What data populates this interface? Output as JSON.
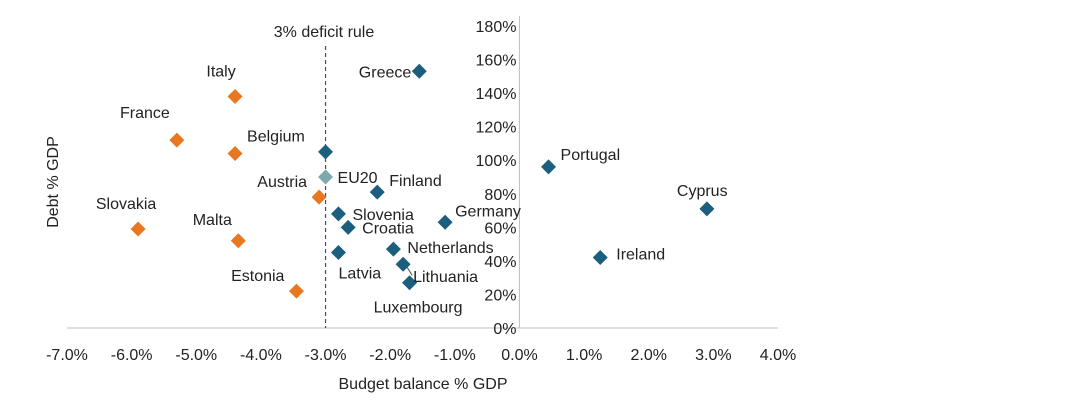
{
  "chart_data": {
    "type": "scatter",
    "xlabel": "Budget balance % GDP",
    "ylabel": "Debt % GDP",
    "xlim": [
      -0.07,
      0.04
    ],
    "ylim": [
      0,
      1.8
    ],
    "x_ticks": [
      "-7.0%",
      "-6.0%",
      "-5.0%",
      "-4.0%",
      "-3.0%",
      "-2.0%",
      "-1.0%",
      "0.0%",
      "1.0%",
      "2.0%",
      "3.0%",
      "4.0%"
    ],
    "y_ticks": [
      "0%",
      "20%",
      "40%",
      "60%",
      "80%",
      "100%",
      "120%",
      "140%",
      "160%",
      "180%"
    ],
    "reference_line": {
      "x": -0.03,
      "label": "3% deficit rule",
      "style": "dashed"
    },
    "grid": false,
    "colors": {
      "breach": "#E87722",
      "compliant": "#1B5E7E",
      "aggregate": "#7FA8AE"
    },
    "points": [
      {
        "name": "Italy",
        "x": -0.044,
        "y": 1.38,
        "group": "breach"
      },
      {
        "name": "France",
        "x": -0.053,
        "y": 1.12,
        "group": "breach"
      },
      {
        "name": "Belgium",
        "x": -0.044,
        "y": 1.04,
        "group": "breach"
      },
      {
        "name": "Austria",
        "x": -0.031,
        "y": 0.78,
        "group": "breach"
      },
      {
        "name": "Slovakia",
        "x": -0.059,
        "y": 0.59,
        "group": "breach"
      },
      {
        "name": "Malta",
        "x": -0.0435,
        "y": 0.52,
        "group": "breach"
      },
      {
        "name": "Estonia",
        "x": -0.0345,
        "y": 0.22,
        "group": "breach"
      },
      {
        "name": "Greece",
        "x": -0.0155,
        "y": 1.53,
        "group": "compliant"
      },
      {
        "name": "",
        "x": -0.03,
        "y": 1.05,
        "group": "compliant"
      },
      {
        "name": "EU20",
        "x": -0.03,
        "y": 0.9,
        "group": "aggregate"
      },
      {
        "name": "Finland",
        "x": -0.022,
        "y": 0.81,
        "group": "compliant"
      },
      {
        "name": "Slovenia",
        "x": -0.028,
        "y": 0.68,
        "group": "compliant"
      },
      {
        "name": "Croatia",
        "x": -0.0265,
        "y": 0.6,
        "group": "compliant"
      },
      {
        "name": "Germany",
        "x": -0.0115,
        "y": 0.63,
        "group": "compliant"
      },
      {
        "name": "Netherlands",
        "x": -0.0195,
        "y": 0.47,
        "group": "compliant"
      },
      {
        "name": "Latvia",
        "x": -0.028,
        "y": 0.45,
        "group": "compliant"
      },
      {
        "name": "Lithuania",
        "x": -0.018,
        "y": 0.38,
        "group": "compliant"
      },
      {
        "name": "Luxembourg",
        "x": -0.017,
        "y": 0.27,
        "group": "compliant"
      },
      {
        "name": "Portugal",
        "x": 0.0045,
        "y": 0.96,
        "group": "compliant"
      },
      {
        "name": "Cyprus",
        "x": 0.029,
        "y": 0.71,
        "group": "compliant"
      },
      {
        "name": "Ireland",
        "x": 0.0125,
        "y": 0.42,
        "group": "compliant"
      }
    ]
  }
}
